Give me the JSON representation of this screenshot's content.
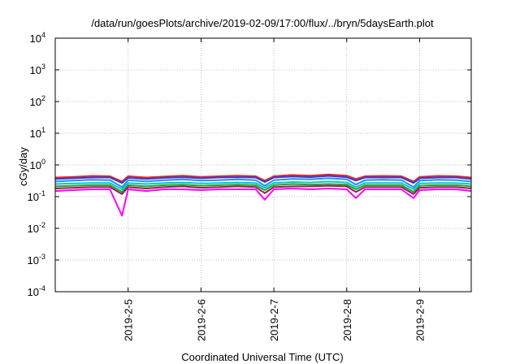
{
  "chart_data": {
    "type": "line",
    "title": "/data/run/goesPlots/archive/2019-02-09/17:00/flux/../bryn/5daysEarth.plot",
    "xlabel": "Coordinated Universal Time (UTC)",
    "ylabel": "cGy/day",
    "y_scale": "log",
    "ylim": [
      0.0001,
      10000
    ],
    "xlim": [
      "2019-02-04T00:00",
      "2019-02-09T17:00"
    ],
    "grid": true,
    "legend": "none",
    "y_ticks": [
      {
        "base": "10",
        "exp": "-4"
      },
      {
        "base": "10",
        "exp": "-3"
      },
      {
        "base": "10",
        "exp": "-2"
      },
      {
        "base": "10",
        "exp": "-1"
      },
      {
        "base": "10",
        "exp": "0"
      },
      {
        "base": "10",
        "exp": "1"
      },
      {
        "base": "10",
        "exp": "2"
      },
      {
        "base": "10",
        "exp": "3"
      },
      {
        "base": "10",
        "exp": "4"
      }
    ],
    "x_ticks": [
      "2019-2-5",
      "2019-2-6",
      "2019-2-7",
      "2019-2-8",
      "2019-2-9"
    ],
    "x_tick_dates": [
      "2019-02-05",
      "2019-02-06",
      "2019-02-07",
      "2019-02-08",
      "2019-02-09"
    ],
    "x": [
      "2019-02-04T00:00",
      "2019-02-04T06:00",
      "2019-02-04T12:00",
      "2019-02-04T18:00",
      "2019-02-04T22:00",
      "2019-02-05T00:00",
      "2019-02-05T06:00",
      "2019-02-05T12:00",
      "2019-02-05T18:00",
      "2019-02-06T00:00",
      "2019-02-06T06:00",
      "2019-02-06T12:00",
      "2019-02-06T18:00",
      "2019-02-06T21:00",
      "2019-02-07T00:00",
      "2019-02-07T06:00",
      "2019-02-07T12:00",
      "2019-02-07T18:00",
      "2019-02-08T00:00",
      "2019-02-08T03:00",
      "2019-02-08T06:00",
      "2019-02-08T12:00",
      "2019-02-08T18:00",
      "2019-02-08T22:00",
      "2019-02-09T00:00",
      "2019-02-09T06:00",
      "2019-02-09T12:00",
      "2019-02-09T17:00"
    ],
    "series": [
      {
        "color": "#e8242a",
        "values": [
          0.4,
          0.42,
          0.45,
          0.44,
          0.3,
          0.44,
          0.4,
          0.43,
          0.46,
          0.42,
          0.44,
          0.46,
          0.44,
          0.32,
          0.44,
          0.48,
          0.46,
          0.5,
          0.46,
          0.36,
          0.44,
          0.45,
          0.44,
          0.3,
          0.42,
          0.45,
          0.44,
          0.4
        ]
      },
      {
        "color": "#3a3acc",
        "values": [
          0.36,
          0.38,
          0.4,
          0.4,
          0.27,
          0.39,
          0.36,
          0.39,
          0.41,
          0.38,
          0.4,
          0.41,
          0.4,
          0.29,
          0.4,
          0.43,
          0.41,
          0.45,
          0.41,
          0.32,
          0.4,
          0.4,
          0.4,
          0.27,
          0.38,
          0.4,
          0.4,
          0.36
        ]
      },
      {
        "color": "#1e90ff",
        "values": [
          0.3,
          0.32,
          0.34,
          0.33,
          0.2,
          0.33,
          0.3,
          0.33,
          0.35,
          0.32,
          0.33,
          0.35,
          0.33,
          0.22,
          0.33,
          0.36,
          0.35,
          0.38,
          0.35,
          0.24,
          0.33,
          0.34,
          0.33,
          0.2,
          0.32,
          0.34,
          0.33,
          0.3
        ]
      },
      {
        "color": "#00c8c8",
        "values": [
          0.25,
          0.26,
          0.27,
          0.27,
          0.17,
          0.27,
          0.25,
          0.27,
          0.28,
          0.26,
          0.27,
          0.28,
          0.27,
          0.19,
          0.27,
          0.29,
          0.28,
          0.3,
          0.28,
          0.2,
          0.27,
          0.27,
          0.27,
          0.17,
          0.26,
          0.27,
          0.27,
          0.25
        ]
      },
      {
        "color": "#2ca02c",
        "values": [
          0.21,
          0.22,
          0.23,
          0.23,
          0.14,
          0.23,
          0.21,
          0.23,
          0.24,
          0.22,
          0.23,
          0.24,
          0.23,
          0.16,
          0.23,
          0.25,
          0.24,
          0.25,
          0.24,
          0.17,
          0.23,
          0.23,
          0.23,
          0.14,
          0.22,
          0.23,
          0.23,
          0.21
        ]
      },
      {
        "color": "#8b2252",
        "values": [
          0.18,
          0.19,
          0.2,
          0.2,
          0.12,
          0.2,
          0.18,
          0.2,
          0.21,
          0.19,
          0.2,
          0.21,
          0.2,
          0.13,
          0.2,
          0.21,
          0.21,
          0.22,
          0.21,
          0.14,
          0.2,
          0.2,
          0.2,
          0.12,
          0.19,
          0.2,
          0.2,
          0.18
        ]
      },
      {
        "color": "#ff00ff",
        "values": [
          0.15,
          0.16,
          0.17,
          0.17,
          0.025,
          0.17,
          0.15,
          0.17,
          0.17,
          0.16,
          0.17,
          0.17,
          0.17,
          0.08,
          0.17,
          0.18,
          0.17,
          0.18,
          0.17,
          0.09,
          0.17,
          0.17,
          0.17,
          0.09,
          0.16,
          0.17,
          0.17,
          0.15
        ]
      }
    ]
  }
}
